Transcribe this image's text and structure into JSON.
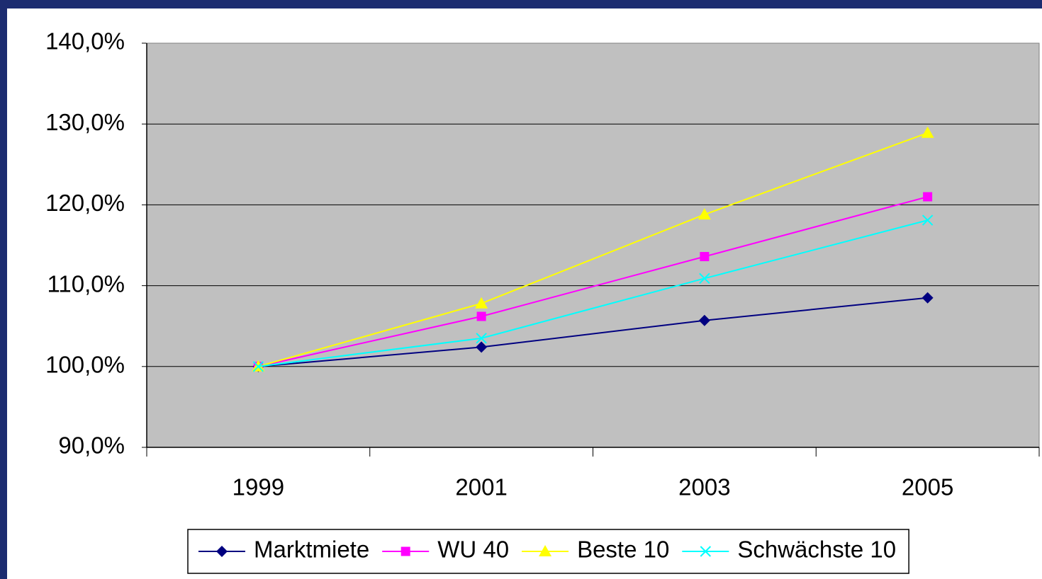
{
  "chart_data": {
    "type": "line",
    "categories": [
      "1999",
      "2001",
      "2003",
      "2005"
    ],
    "series": [
      {
        "name": "Marktmiete",
        "color": "#000080",
        "marker": "diamond",
        "values": [
          100,
          102.4,
          105.7,
          108.5
        ]
      },
      {
        "name": "WU 40",
        "color": "#ff00ff",
        "marker": "square",
        "values": [
          100,
          106.2,
          113.6,
          121.0
        ]
      },
      {
        "name": "Beste 10",
        "color": "#ffff00",
        "marker": "triangle",
        "values": [
          100,
          107.8,
          118.8,
          128.9
        ]
      },
      {
        "name": "Schwächste 10",
        "color": "#00ffff",
        "marker": "x",
        "values": [
          100,
          103.5,
          110.9,
          118.1
        ]
      }
    ],
    "ylim": [
      90,
      140
    ],
    "yticks": [
      {
        "value": 90,
        "label": "90,0%"
      },
      {
        "value": 100,
        "label": "100,0%"
      },
      {
        "value": 110,
        "label": "110,0%"
      },
      {
        "value": 120,
        "label": "120,0%"
      },
      {
        "value": 130,
        "label": "130,0%"
      },
      {
        "value": 140,
        "label": "140,0%"
      }
    ],
    "grid": true,
    "legend": "bottom"
  }
}
